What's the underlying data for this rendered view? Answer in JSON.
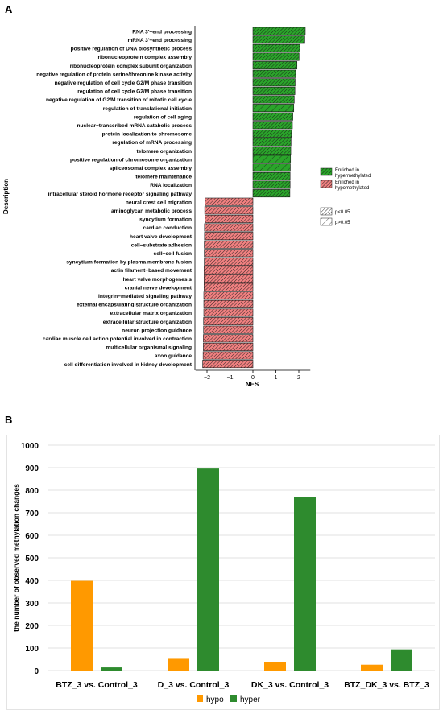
{
  "panel_a_label": "A",
  "panel_b_label": "B",
  "chart_data": [
    {
      "type": "bar",
      "orientation": "horizontal",
      "ylabel": "Description",
      "xlabel": "NES",
      "xlim": [
        -2.5,
        2.5
      ],
      "xticks": [
        "-2",
        "-1",
        "0",
        "1",
        "2"
      ],
      "categories": [
        "RNA 3'−end processing",
        "mRNA 3'−end processing",
        "positive regulation of DNA biosynthetic process",
        "ribonucleoprotein complex assembly",
        "ribonucleoprotein complex subunit organization",
        "negative regulation of protein serine/threonine kinase activity",
        "negative regulation of cell cycle G2/M phase transition",
        "regulation of cell cycle G2/M phase transition",
        "negative regulation of G2/M transition of mitotic cell cycle",
        "regulation of translational initiation",
        "regulation of cell aging",
        "nuclear−transcribed mRNA catabolic process",
        "protein localization to chromosome",
        "regulation of mRNA processing",
        "telomere organization",
        "positive regulation of chromosome organization",
        "spliceosomal complex assembly",
        "telomere maintenance",
        "RNA localization",
        "intracellular steroid hormone receptor signaling pathway",
        "neural crest cell migration",
        "aminoglycan metabolic process",
        "syncytium formation",
        "cardiac conduction",
        "heart valve development",
        "cell−substrate adhesion",
        "cell−cell fusion",
        "syncytium formation by plasma membrane fusion",
        "actin filament−based movement",
        "heart valve morphogenesis",
        "cranial nerve development",
        "integrin−mediated signaling pathway",
        "external encapsulating structure organization",
        "extracellular matrix organization",
        "extracellular structure organization",
        "neuron projection guidance",
        "cardiac muscle cell action potential involved in contraction",
        "multicellular organismal signaling",
        "axon guidance",
        "cell differentiation involved in kidney development"
      ],
      "values": [
        2.28,
        2.26,
        2.04,
        2.01,
        1.92,
        1.86,
        1.84,
        1.83,
        1.8,
        1.78,
        1.74,
        1.72,
        1.68,
        1.66,
        1.65,
        1.64,
        1.63,
        1.62,
        1.62,
        1.61,
        -2.08,
        -2.1,
        -2.09,
        -2.11,
        -2.11,
        -2.12,
        -2.12,
        -2.12,
        -2.13,
        -2.13,
        -2.13,
        -2.14,
        -2.14,
        -2.14,
        -2.15,
        -2.15,
        -2.16,
        -2.16,
        -2.17,
        -2.19
      ],
      "significant": [
        true,
        true,
        true,
        true,
        true,
        true,
        true,
        true,
        true,
        false,
        true,
        true,
        true,
        true,
        true,
        false,
        false,
        true,
        true,
        true,
        true,
        true,
        true,
        true,
        true,
        true,
        true,
        true,
        true,
        true,
        true,
        true,
        true,
        true,
        true,
        true,
        true,
        true,
        true,
        true
      ],
      "colors": {
        "hyper": "#2aa52a",
        "hypo": "#f08080",
        "hatch": "#1a1a1a"
      },
      "legend": [
        {
          "label_line1": "Enriched in",
          "label_line2": "hypermethylated",
          "key": "hyper"
        },
        {
          "label_line1": "Enriched in",
          "label_line2": "hypomethylated",
          "key": "hypo"
        }
      ],
      "legend_sig": [
        {
          "label": "p<0.05",
          "key": "dense"
        },
        {
          "label": "p>0.05",
          "key": "sparse"
        }
      ]
    },
    {
      "type": "bar",
      "ylabel": "the number of observed methylation changes",
      "ylim": [
        0,
        1000
      ],
      "yticks": [
        "0",
        "100",
        "200",
        "300",
        "400",
        "500",
        "600",
        "700",
        "800",
        "900",
        "1000"
      ],
      "categories": [
        "BTZ_3 vs. Control_3",
        "D_3 vs. Control_3",
        "DK_3 vs. Control_3",
        "BTZ_DK_3 vs. BTZ_3"
      ],
      "series": [
        {
          "name": "hypo",
          "values": [
            398,
            52,
            36,
            26
          ],
          "color": "#ff9900"
        },
        {
          "name": "hyper",
          "values": [
            14,
            896,
            768,
            94
          ],
          "color": "#2e8b2e"
        }
      ],
      "gridline_color": "#d9d9d9",
      "legend_position": "bottom"
    }
  ]
}
